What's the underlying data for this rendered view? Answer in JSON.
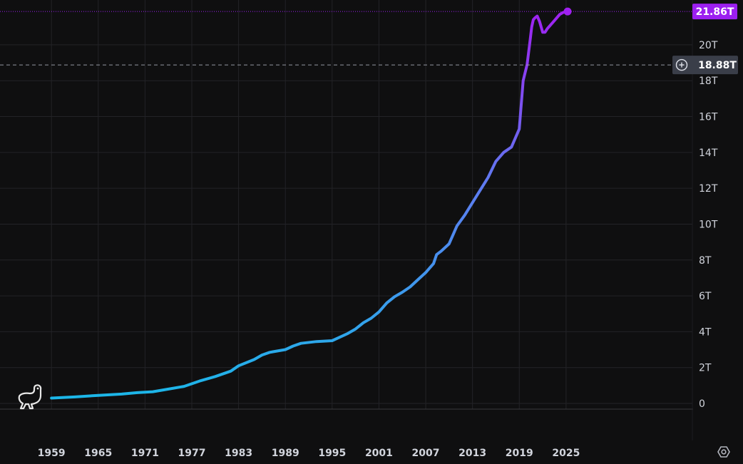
{
  "chart_data": {
    "type": "line",
    "x_tick_labels": [
      "1959",
      "1965",
      "1971",
      "1977",
      "1983",
      "1989",
      "1995",
      "2001",
      "2007",
      "2013",
      "2019",
      "2025"
    ],
    "y_tick_labels": [
      "0",
      "2T",
      "4T",
      "6T",
      "8T",
      "10T",
      "12T",
      "14T",
      "16T",
      "18T",
      "20T"
    ],
    "y_ticks": [
      0,
      2,
      4,
      6,
      8,
      10,
      12,
      14,
      16,
      18,
      20
    ],
    "ylim": [
      0,
      22.5
    ],
    "xlim": [
      1952.4,
      2041.2
    ],
    "y_unit": "T",
    "grid": true,
    "legend": "none",
    "series": [
      {
        "x": [
          1959.0,
          1962.0,
          1965.0,
          1968.0,
          1970.0,
          1972.0,
          1974.0,
          1976.0,
          1978.0,
          1980.0,
          1982.0,
          1983.0,
          1985.0,
          1986.0,
          1987.0,
          1989.0,
          1990.0,
          1991.0,
          1993.0,
          1995.0,
          1996.0,
          1997.0,
          1998.0,
          1999.0,
          2000.0,
          2001.0,
          2002.0,
          2003.0,
          2004.0,
          2005.0,
          2006.0,
          2007.0,
          2008.0,
          2008.4,
          2009.0,
          2010.0,
          2011.0,
          2012.0,
          2013.0,
          2014.0,
          2015.0,
          2016.0,
          2017.0,
          2018.0,
          2019.0,
          2019.5,
          2020.0,
          2020.2,
          2020.4,
          2020.6,
          2020.8,
          2021.0,
          2021.3,
          2021.6,
          2022.0,
          2022.3,
          2022.6,
          2023.0,
          2023.4,
          2023.8,
          2024.2,
          2024.6,
          2025.0,
          2025.2
        ],
        "y": [
          0.3,
          0.36,
          0.45,
          0.52,
          0.6,
          0.65,
          0.8,
          0.95,
          1.25,
          1.5,
          1.8,
          2.1,
          2.45,
          2.7,
          2.85,
          3.0,
          3.2,
          3.35,
          3.45,
          3.5,
          3.7,
          3.9,
          4.15,
          4.5,
          4.75,
          5.1,
          5.6,
          5.95,
          6.2,
          6.5,
          6.9,
          7.3,
          7.8,
          8.3,
          8.5,
          8.9,
          9.9,
          10.5,
          11.2,
          11.9,
          12.6,
          13.5,
          14.0,
          14.3,
          15.3,
          18.0,
          18.9,
          19.6,
          20.3,
          21.0,
          21.4,
          21.5,
          21.6,
          21.3,
          20.7,
          20.7,
          20.9,
          21.1,
          21.3,
          21.5,
          21.7,
          21.8,
          21.86,
          21.86
        ]
      }
    ],
    "last_value_label": "21.86T",
    "last_value": 21.86,
    "crosshair_label": "18.88T",
    "crosshair_value": 18.88,
    "colors": {
      "line_start": "#1ab8e8",
      "line_mid": "#5e7cf0",
      "line_end": "#a020f0",
      "last_value_badge": "#9c1ff0",
      "crosshair_badge": "#3a3e49",
      "background": "#0f0f10",
      "grid": "#232327"
    }
  },
  "icons": {
    "logo": "dinosaur-logo-icon",
    "settings": "settings-gear-icon",
    "crosshair_add": "plus-circle-icon"
  }
}
